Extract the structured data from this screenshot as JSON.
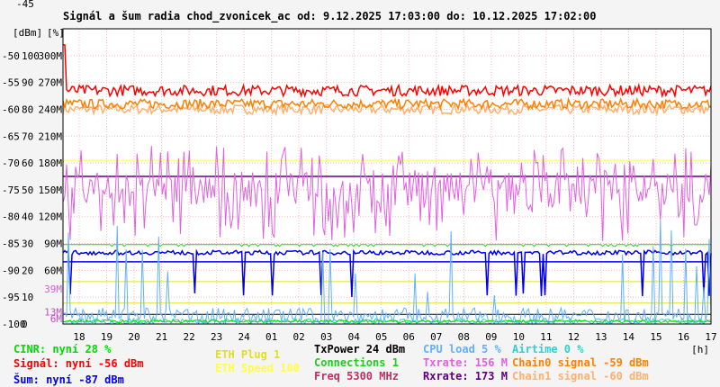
{
  "title": "Signál a šum radia chod_zvonicek_ac od: 9.12.2025 17:03:00 do: 10.12.2025 17:02:00",
  "legend": {
    "cinr": "CINR: nyní 28 %",
    "signal": "Signál: nyní -56 dBm",
    "noise": "Šum: nyní -87 dBm",
    "eth_plug": "ETH Plug 1",
    "eth_speed": "ETH Speed 100",
    "txpower": "TxPower 24 dBm",
    "connections": "Connections 1",
    "freq": "Freq 5300 MHz",
    "cpu_load": "CPU load 5 %",
    "txrate": "Txrate: 156 M",
    "rxrate": "Rxrate: 173 M",
    "airtime": "Airtime 0 %",
    "chain0": "Chain0 signal -59 dBm",
    "chain1": "Chain1 signal -60 dBm"
  },
  "colors": {
    "signal": "#ff0000",
    "chain0": "#ff8000",
    "chain1": "#ffb070",
    "txrate": "#e060e0",
    "rxrate": "#600080",
    "connections": "#22cc22",
    "noise": "#0000ee",
    "cpu_load": "#60b0ff",
    "airtime": "#30d0d0",
    "eth_plug": "#e0e020",
    "eth_speed": "#ffff40",
    "cinr": "#00dd00",
    "freq": "#c03060",
    "txpower": "#000000"
  },
  "chart_data": {
    "type": "line",
    "title": "Signál a šum radia chod_zvonicek_ac od: 9.12.2025 17:03:00 do: 10.12.2025 17:02:00",
    "xlabel": "[h]",
    "x_ticks": [
      "18",
      "19",
      "20",
      "21",
      "22",
      "23",
      "24",
      "01",
      "02",
      "03",
      "04",
      "05",
      "06",
      "07",
      "08",
      "09",
      "10",
      "11",
      "12",
      "13",
      "14",
      "15",
      "16",
      "17"
    ],
    "y_dbm_ticks": [
      "-45",
      "-50",
      "-55",
      "-60",
      "-65",
      "-70",
      "-75",
      "-80",
      "-85",
      "-90",
      "-95",
      "-100"
    ],
    "y_pct_ticks": [
      "[%]",
      "100",
      "90",
      "80",
      "70",
      "60",
      "50",
      "40",
      "30",
      "20",
      "10",
      "0"
    ],
    "y_rate_ticks": [
      "300M",
      "270M",
      "240M",
      "210M",
      "180M",
      "150M",
      "120M",
      "90M",
      "60M",
      "39M",
      "13M",
      "6M"
    ],
    "y_dbm_label": "[dBm]",
    "ylim_dbm": [
      -100,
      -45
    ],
    "grid": true,
    "series": [
      {
        "name": "Signál",
        "key": "signal",
        "unit": "dBm",
        "current": -56,
        "typical": -56.5,
        "spread": 1.0
      },
      {
        "name": "Chain0 signal",
        "key": "chain0",
        "unit": "dBm",
        "current": -59,
        "typical": -59,
        "spread": 0.9
      },
      {
        "name": "Chain1 signal",
        "key": "chain1",
        "unit": "dBm",
        "current": -60,
        "typical": -60,
        "spread": 0.9
      },
      {
        "name": "Txrate",
        "key": "txrate",
        "unit": "M",
        "current": 156,
        "typical": 150,
        "spread": 20
      },
      {
        "name": "Rxrate",
        "key": "rxrate",
        "unit": "M",
        "current": 173,
        "typical": 173,
        "spread": 0
      },
      {
        "name": "Šum",
        "key": "noise",
        "unit": "dBm",
        "current": -87,
        "typical": -86.7,
        "spread": 0.4
      },
      {
        "name": "CINR",
        "key": "cinr",
        "unit": "%",
        "current": 28,
        "typical": 28,
        "spread": 1
      },
      {
        "name": "CPU load",
        "key": "cpu_load",
        "unit": "%",
        "current": 5,
        "typical": 3,
        "spread": 3
      },
      {
        "name": "Airtime",
        "key": "airtime",
        "unit": "%",
        "current": 0,
        "typical": 1,
        "spread": 1
      }
    ]
  }
}
